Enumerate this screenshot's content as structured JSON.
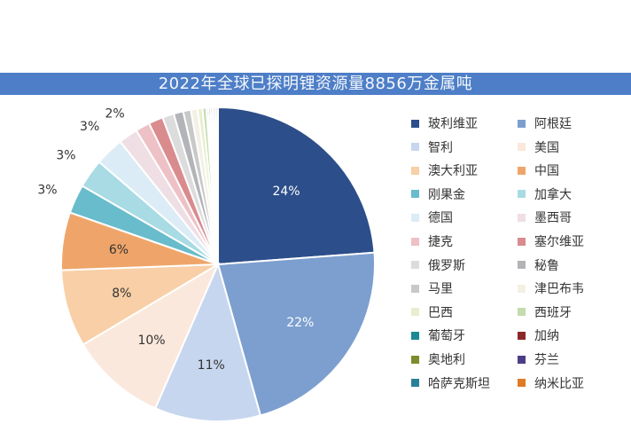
{
  "chart_data": {
    "type": "pie",
    "title": "2022年全球已探明锂资源量8856万金属吨",
    "start_angle_deg": 0,
    "direction": "clockwise",
    "slices": [
      {
        "name": "玻利维亚",
        "value": 24,
        "label": "24%",
        "color": "#2c4e8a"
      },
      {
        "name": "阿根廷",
        "value": 22,
        "label": "22%",
        "color": "#7c9fcf"
      },
      {
        "name": "智利",
        "value": 11,
        "label": "11%",
        "color": "#c6d6ee"
      },
      {
        "name": "美国",
        "value": 10,
        "label": "10%",
        "color": "#fbe8dc"
      },
      {
        "name": "澳大利亚",
        "value": 8,
        "label": "8%",
        "color": "#f8cfa6"
      },
      {
        "name": "中国",
        "value": 6,
        "label": "6%",
        "color": "#efa569"
      },
      {
        "name": "刚果金",
        "value": 3,
        "label": "3%",
        "color": "#68bccb"
      },
      {
        "name": "加拿大",
        "value": 3,
        "label": "3%",
        "color": "#a8dbe4"
      },
      {
        "name": "德国",
        "value": 3,
        "label": "3%",
        "color": "#dcecf6"
      },
      {
        "name": "墨西哥",
        "value": 2,
        "label": "2%",
        "color": "#efdfe4"
      },
      {
        "name": "捷克",
        "value": 1.5,
        "label": "",
        "color": "#edc1c6"
      },
      {
        "name": "塞尔维亚",
        "value": 1.5,
        "label": "",
        "color": "#d98b8e"
      },
      {
        "name": "俄罗斯",
        "value": 1.2,
        "label": "",
        "color": "#dcdcdc"
      },
      {
        "name": "秘鲁",
        "value": 1.0,
        "label": "",
        "color": "#b2b4b8"
      },
      {
        "name": "马里",
        "value": 0.8,
        "label": "",
        "color": "#c8c8c8"
      },
      {
        "name": "津巴布韦",
        "value": 0.7,
        "label": "",
        "color": "#f3f0e4"
      },
      {
        "name": "巴西",
        "value": 0.5,
        "label": "",
        "color": "#e8efce"
      },
      {
        "name": "西班牙",
        "value": 0.4,
        "label": "",
        "color": "#c3dbae"
      },
      {
        "name": "葡萄牙",
        "value": 0.2,
        "label": "",
        "color": "#1a8a95"
      },
      {
        "name": "加纳",
        "value": 0.2,
        "label": "",
        "color": "#8b2727"
      },
      {
        "name": "奥地利",
        "value": 0.2,
        "label": "",
        "color": "#7c8e2c"
      },
      {
        "name": "芬兰",
        "value": 0.2,
        "label": "",
        "color": "#4d3d88"
      },
      {
        "name": "哈萨克斯坦",
        "value": 0.2,
        "label": "",
        "color": "#2b8099"
      },
      {
        "name": "纳米比亚",
        "value": 0.2,
        "label": "",
        "color": "#e07a25"
      }
    ]
  }
}
